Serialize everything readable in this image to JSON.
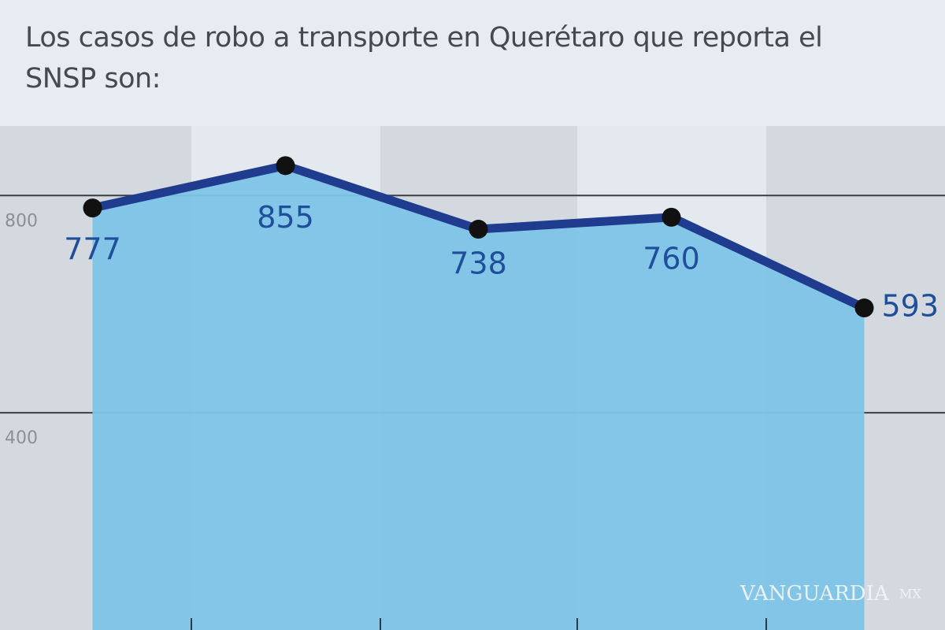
{
  "chart_data": {
    "type": "area",
    "title": "Los casos de robo a transporte en Querétaro que reporta el SNSP son:",
    "categories": [
      null,
      null,
      null,
      null,
      null
    ],
    "values": [
      777,
      855,
      738,
      760,
      593
    ],
    "color": "#1f3c8f",
    "fill_color": "#7ec4e6",
    "marker_color": "#111111",
    "label_color": "#1f4e9a",
    "ylim": [
      0,
      1160
    ],
    "yticks": [
      400,
      800
    ],
    "grid": true
  },
  "watermark": {
    "brand": "VANGUARDIA",
    "suffix": "MX"
  }
}
